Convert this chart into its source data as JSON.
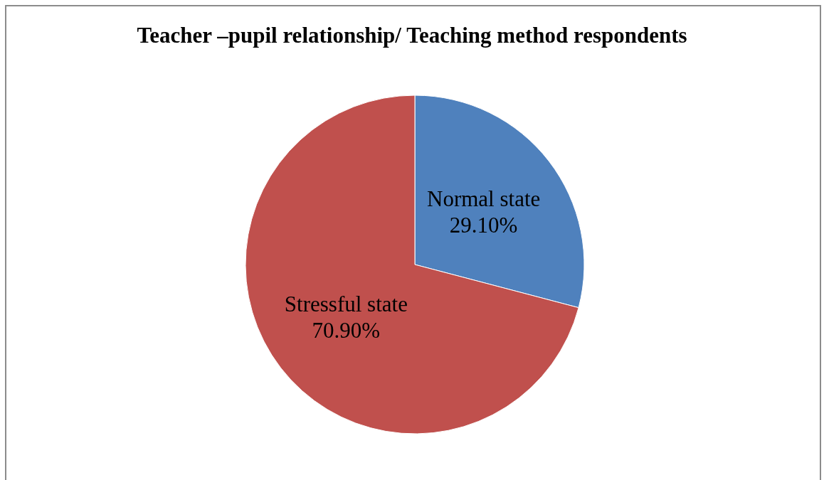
{
  "chart_data": {
    "type": "pie",
    "title": "Teacher –pupil relationship/ Teaching method respondents",
    "categories": [
      "Normal state",
      "Stressful state"
    ],
    "values": [
      29.1,
      70.9
    ],
    "colors": [
      "#4f81bd",
      "#c0504d"
    ],
    "value_labels": [
      "29.10%",
      "70.90%"
    ]
  }
}
